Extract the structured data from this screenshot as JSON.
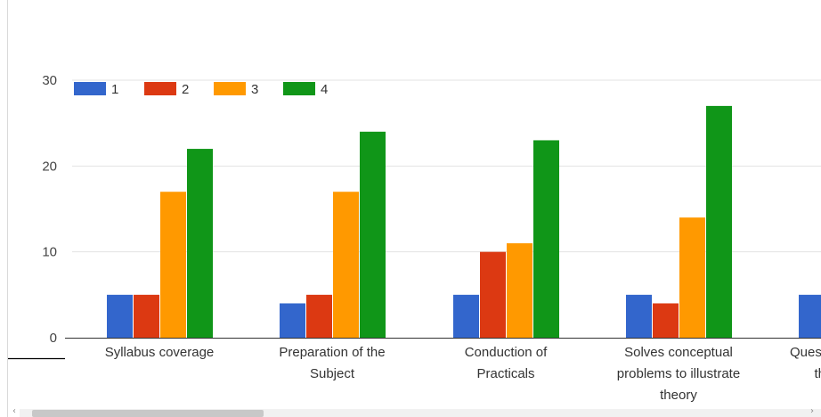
{
  "chart_data": {
    "type": "bar",
    "categories": [
      [
        "Syllabus coverage"
      ],
      [
        "Preparation of the",
        "Subject"
      ],
      [
        "Conduction of",
        "Practicals"
      ],
      [
        "Solves conceptual",
        "problems to illustrate",
        "theory"
      ],
      [
        "Quest",
        "th"
      ]
    ],
    "series": [
      {
        "name": "1",
        "color": "#3366cc",
        "values": [
          5,
          4,
          5,
          5,
          5
        ]
      },
      {
        "name": "2",
        "color": "#dc3912",
        "values": [
          5,
          5,
          10,
          4,
          null
        ]
      },
      {
        "name": "3",
        "color": "#ff9900",
        "values": [
          17,
          17,
          11,
          14,
          null
        ]
      },
      {
        "name": "4",
        "color": "#109618",
        "values": [
          22,
          24,
          23,
          27,
          null
        ]
      }
    ],
    "yticks": [
      0,
      10,
      20,
      30
    ],
    "ylim": [
      0,
      30
    ],
    "legend": "top-left",
    "grid": true
  },
  "ui": {
    "scroll_left_icon": "‹",
    "scroll_right_icon": "›"
  }
}
